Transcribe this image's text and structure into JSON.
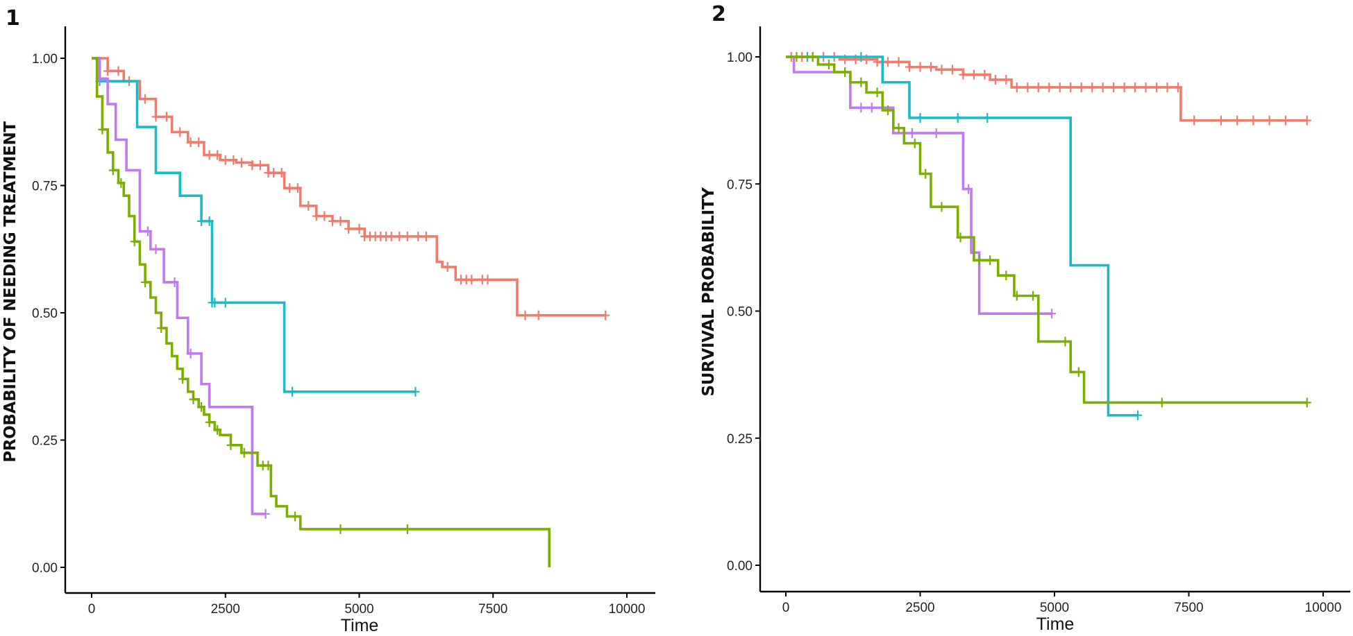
{
  "chart_data": [
    {
      "type": "line",
      "subtype": "kaplan-meier step",
      "panel_label": "1",
      "title": "",
      "xlabel": "Time",
      "ylabel": "PROBABILITY OF NEEDING TREATMENT",
      "xlim": [
        -500,
        10500
      ],
      "ylim": [
        -0.05,
        1.05
      ],
      "x_ticks": [
        0,
        2500,
        5000,
        7500,
        10000
      ],
      "x_tick_labels": [
        "0",
        "2500",
        "5000",
        "7500",
        "10000"
      ],
      "y_ticks": [
        0,
        0.25,
        0.5,
        0.75,
        1.0
      ],
      "y_tick_labels": [
        "0.00",
        "0.25",
        "0.50",
        "0.75",
        "1.00"
      ],
      "grid": false,
      "legend": "none",
      "series": [
        {
          "name": "red",
          "color": "#F07A6E",
          "x": [
            0,
            300,
            600,
            900,
            1200,
            1500,
            1800,
            2100,
            2400,
            2700,
            3000,
            3300,
            3600,
            3900,
            4200,
            4500,
            4800,
            5100,
            5500,
            6000,
            6450,
            6550,
            6800,
            7500,
            7950,
            9600
          ],
          "y": [
            1.0,
            0.975,
            0.955,
            0.92,
            0.885,
            0.855,
            0.835,
            0.81,
            0.8,
            0.795,
            0.79,
            0.775,
            0.745,
            0.71,
            0.69,
            0.68,
            0.665,
            0.65,
            0.65,
            0.65,
            0.6,
            0.59,
            0.565,
            0.565,
            0.495,
            0.495
          ],
          "censor_x": [
            300,
            500,
            700,
            1000,
            1200,
            1400,
            1650,
            1850,
            2000,
            2200,
            2350,
            2500,
            2650,
            2800,
            3000,
            3150,
            3300,
            3400,
            3550,
            3700,
            3850,
            4050,
            4200,
            4350,
            4500,
            4650,
            4800,
            5000,
            5100,
            5200,
            5300,
            5400,
            5500,
            5600,
            5750,
            5900,
            6100,
            6250,
            6650,
            6900,
            7000,
            7100,
            7300,
            7400,
            8100,
            8350,
            9600
          ]
        },
        {
          "name": "cyan",
          "color": "#1BBBC4",
          "x": [
            0,
            70,
            150,
            750,
            850,
            1200,
            1650,
            2050,
            2250,
            3600,
            6050
          ],
          "y": [
            1.0,
            1.0,
            0.955,
            0.955,
            0.865,
            0.775,
            0.73,
            0.68,
            0.52,
            0.345,
            0.345
          ],
          "censor_x": [
            150,
            2050,
            2200,
            2250,
            2300,
            2500,
            3750,
            6050
          ]
        },
        {
          "name": "purple",
          "color": "#C07AF0",
          "x": [
            0,
            150,
            300,
            450,
            650,
            900,
            1100,
            1350,
            1600,
            1800,
            2050,
            2200,
            2750,
            3000,
            3250
          ],
          "y": [
            1.0,
            0.96,
            0.91,
            0.84,
            0.78,
            0.66,
            0.625,
            0.56,
            0.49,
            0.42,
            0.36,
            0.315,
            0.315,
            0.105,
            0.105
          ],
          "censor_x": [
            150,
            1050,
            1200,
            1550,
            1850,
            3250
          ]
        },
        {
          "name": "green",
          "color": "#7CAE00",
          "x": [
            0,
            100,
            200,
            300,
            400,
            500,
            600,
            700,
            800,
            900,
            1000,
            1100,
            1200,
            1300,
            1400,
            1500,
            1600,
            1700,
            1800,
            1900,
            2000,
            2100,
            2200,
            2300,
            2400,
            2500,
            2600,
            2800,
            3100,
            3350,
            3450,
            3650,
            3900,
            8550,
            8550
          ],
          "y": [
            1.0,
            0.925,
            0.86,
            0.815,
            0.78,
            0.755,
            0.73,
            0.69,
            0.64,
            0.595,
            0.56,
            0.53,
            0.5,
            0.47,
            0.44,
            0.415,
            0.39,
            0.37,
            0.345,
            0.33,
            0.315,
            0.3,
            0.285,
            0.27,
            0.26,
            0.26,
            0.24,
            0.225,
            0.2,
            0.14,
            0.12,
            0.1,
            0.075,
            0.075,
            0.0
          ],
          "censor_x": [
            200,
            400,
            550,
            800,
            1000,
            1300,
            1700,
            1900,
            2050,
            2200,
            2350,
            2600,
            2850,
            3200,
            3300,
            3800,
            4650,
            5900
          ]
        }
      ]
    },
    {
      "type": "line",
      "subtype": "kaplan-meier step",
      "panel_label": "2",
      "title": "",
      "xlabel": "Time",
      "ylabel": "SURVIVAL PROBABILITY",
      "xlim": [
        -500,
        10500
      ],
      "ylim": [
        -0.05,
        1.05
      ],
      "x_ticks": [
        0,
        2500,
        5000,
        7500,
        10000
      ],
      "x_tick_labels": [
        "0",
        "2500",
        "5000",
        "7500",
        "10000"
      ],
      "y_ticks": [
        0,
        0.25,
        0.5,
        0.75,
        1.0
      ],
      "y_tick_labels": [
        "0.00",
        "0.25",
        "0.50",
        "0.75",
        "1.00"
      ],
      "grid": false,
      "legend": "none",
      "series": [
        {
          "name": "red",
          "color": "#F07A6E",
          "x": [
            0,
            1000,
            1700,
            2300,
            2800,
            3300,
            3800,
            4200,
            7350,
            9700
          ],
          "y": [
            1.0,
            0.995,
            0.99,
            0.98,
            0.975,
            0.965,
            0.955,
            0.94,
            0.875,
            0.875
          ],
          "censor_x": [
            100,
            300,
            500,
            700,
            900,
            1100,
            1300,
            1500,
            1700,
            1900,
            2100,
            2300,
            2500,
            2700,
            2900,
            3100,
            3300,
            3500,
            3700,
            3900,
            4100,
            4300,
            4500,
            4700,
            4900,
            5100,
            5300,
            5500,
            5700,
            5900,
            6100,
            6300,
            6500,
            6700,
            6900,
            7100,
            7300,
            7600,
            8100,
            8400,
            8700,
            9000,
            9300,
            9700
          ]
        },
        {
          "name": "cyan",
          "color": "#1BBBC4",
          "x": [
            0,
            1800,
            2300,
            5300,
            6000,
            6550
          ],
          "y": [
            1.0,
            0.95,
            0.88,
            0.59,
            0.295,
            0.295
          ],
          "censor_x": [
            400,
            1400,
            2500,
            3200,
            3750,
            6550
          ]
        },
        {
          "name": "purple",
          "color": "#C07AF0",
          "x": [
            0,
            150,
            1200,
            2000,
            3300,
            3450,
            3600,
            4950
          ],
          "y": [
            1.0,
            0.97,
            0.9,
            0.85,
            0.74,
            0.615,
            0.495,
            0.495
          ],
          "censor_x": [
            1100,
            1400,
            1600,
            2200,
            2350,
            2800,
            3400,
            4700,
            4950
          ]
        },
        {
          "name": "green",
          "color": "#7CAE00",
          "x": [
            0,
            600,
            900,
            1200,
            1500,
            1800,
            2000,
            2200,
            2500,
            2700,
            3200,
            3500,
            3950,
            4250,
            4700,
            5300,
            5550,
            9700
          ],
          "y": [
            1.0,
            0.985,
            0.97,
            0.95,
            0.93,
            0.895,
            0.86,
            0.83,
            0.77,
            0.705,
            0.645,
            0.6,
            0.57,
            0.53,
            0.44,
            0.38,
            0.32,
            0.32
          ],
          "censor_x": [
            200,
            500,
            800,
            1100,
            1400,
            1700,
            1900,
            2100,
            2400,
            2600,
            2900,
            3250,
            3600,
            3800,
            4100,
            4300,
            4600,
            5200,
            5450,
            7000,
            9700
          ]
        }
      ]
    }
  ]
}
